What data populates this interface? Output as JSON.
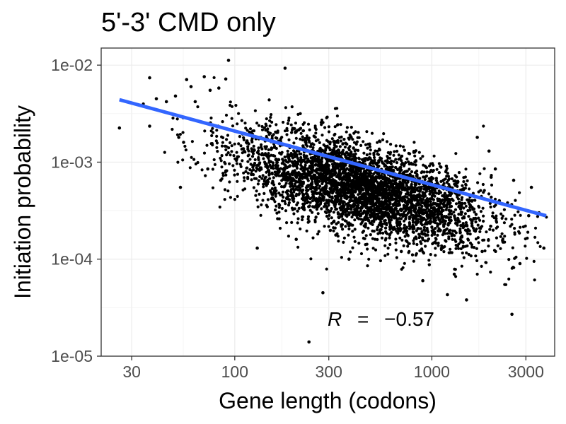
{
  "chart_data": {
    "type": "scatter",
    "title": "5'-3' CMD only",
    "xlabel": "Gene length (codons)",
    "ylabel": "Initiation probability",
    "x_scale": "log10",
    "y_scale": "log10",
    "xlim": [
      21,
      4200
    ],
    "ylim": [
      1e-05,
      0.015
    ],
    "x_ticks": [
      30,
      100,
      300,
      1000,
      3000
    ],
    "x_tick_labels": [
      "30",
      "100",
      "300",
      "1000",
      "3000"
    ],
    "y_ticks": [
      1e-05,
      0.0001,
      0.001,
      0.01
    ],
    "y_tick_labels": [
      "1e-05",
      "1e-04",
      "1e-03",
      "1e-02"
    ],
    "grid": true,
    "annotation": {
      "r_symbol": "R",
      "equals": "=",
      "value": "−0.57",
      "x": 500,
      "y": 2.3e-05
    },
    "fit_line": {
      "color": "#3366FF",
      "x": [
        26,
        3800
      ],
      "y": [
        0.0044,
        0.00028
      ]
    },
    "point_color": "#000000",
    "points": [
      [
        26,
        0.00225
      ],
      [
        37,
        0.0074
      ],
      [
        37,
        0.00235
      ],
      [
        40,
        0.0045
      ],
      [
        45,
        0.0042
      ],
      [
        50,
        0.0048
      ],
      [
        52,
        0.0018
      ],
      [
        53,
        0.00055
      ],
      [
        55,
        0.0016
      ],
      [
        57,
        0.0071
      ],
      [
        60,
        0.006
      ],
      [
        63,
        0.0042
      ],
      [
        70,
        0.0076
      ],
      [
        73,
        0.00085
      ],
      [
        75,
        0.0055
      ],
      [
        83,
        0.0058
      ],
      [
        90,
        0.0072
      ],
      [
        93,
        0.0112
      ],
      [
        85,
        0.00065
      ],
      [
        130,
        0.00013
      ],
      [
        180,
        0.0093
      ],
      [
        205,
        0.00016
      ],
      [
        238,
        1.4e-05
      ],
      [
        280,
        4.5e-05
      ],
      [
        380,
        0.0001
      ],
      [
        1200,
        4.3e-05
      ],
      [
        1500,
        3.8e-05
      ],
      [
        2550,
        2.7e-05
      ],
      [
        1100,
        0.00025
      ],
      [
        1800,
        0.00012
      ],
      [
        2000,
        0.0007
      ],
      [
        2600,
        0.00065
      ],
      [
        2800,
        9e-05
      ],
      [
        3100,
        0.00028
      ],
      [
        3200,
        0.00055
      ],
      [
        3500,
        0.0003
      ],
      [
        3700,
        0.00013
      ],
      [
        2200,
        0.0004
      ],
      [
        1400,
        0.00033
      ],
      [
        1600,
        0.00022
      ],
      [
        900,
        6e-05
      ],
      [
        700,
        0.00012
      ],
      [
        1300,
        7e-05
      ],
      [
        420,
        0.00055
      ],
      [
        2300,
        0.00015
      ],
      [
        1950,
        0.0013
      ],
      [
        2100,
        0.00085
      ],
      [
        1700,
        0.0018
      ]
    ],
    "cloud": {
      "count": 4200,
      "center_log10_x": 2.65,
      "sd_log10_x": 0.32,
      "slope": -0.55,
      "intercept_log10_y": -1.82,
      "residual_sd": 0.23,
      "log10_x_range": [
        1.45,
        3.6
      ],
      "log10_y_range": [
        -4.4,
        -2.0
      ]
    }
  }
}
